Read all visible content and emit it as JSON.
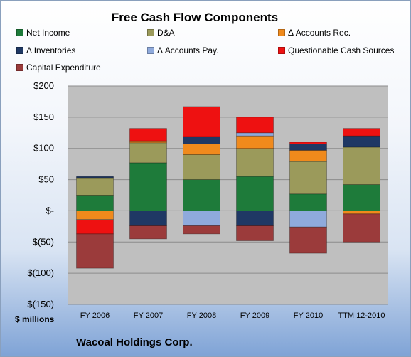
{
  "chart_data": {
    "type": "bar",
    "stacked": true,
    "title": "Free Cash Flow Components",
    "ylabel": "$ millions",
    "footer": "Wacoal Holdings Corp.",
    "categories": [
      "FY 2006",
      "FY 2007",
      "FY 2008",
      "FY 2009",
      "FY 2010",
      "TTM 12-2010"
    ],
    "yticks": [
      {
        "value": 200,
        "label": "$200"
      },
      {
        "value": 150,
        "label": "$150"
      },
      {
        "value": 100,
        "label": "$100"
      },
      {
        "value": 50,
        "label": "$50"
      },
      {
        "value": 0,
        "label": "$-"
      },
      {
        "value": -50,
        "label": "$(50)"
      },
      {
        "value": -100,
        "label": "$(100)"
      },
      {
        "value": -150,
        "label": "$(150)"
      }
    ],
    "ylim": [
      -150,
      200
    ],
    "grid": true,
    "legend_position": "top",
    "series": [
      {
        "name": "Net Income",
        "color": "#1e7b3a",
        "values": [
          25,
          77,
          50,
          55,
          27,
          42
        ]
      },
      {
        "name": "D&A",
        "color": "#9b9a5b",
        "values": [
          28,
          32,
          40,
          45,
          52,
          60
        ]
      },
      {
        "name": "Δ Accounts Rec.",
        "color": "#f08a1c",
        "values": [
          -14,
          3,
          17,
          20,
          18,
          -5
        ]
      },
      {
        "name": "Δ Inventories",
        "color": "#1f3864",
        "values": [
          2,
          -24,
          12,
          -24,
          10,
          18
        ]
      },
      {
        "name": "Δ Accounts Pay.",
        "color": "#8faadc",
        "values": [
          -1,
          0,
          -24,
          5,
          -26,
          0
        ]
      },
      {
        "name": "Questionable Cash Sources",
        "color": "#ee1111",
        "values": [
          -22,
          20,
          48,
          25,
          3,
          12
        ]
      },
      {
        "name": "Capital Expenditure",
        "color": "#9b3b3b",
        "values": [
          -55,
          -21,
          -13,
          -24,
          -42,
          -45
        ]
      }
    ]
  }
}
